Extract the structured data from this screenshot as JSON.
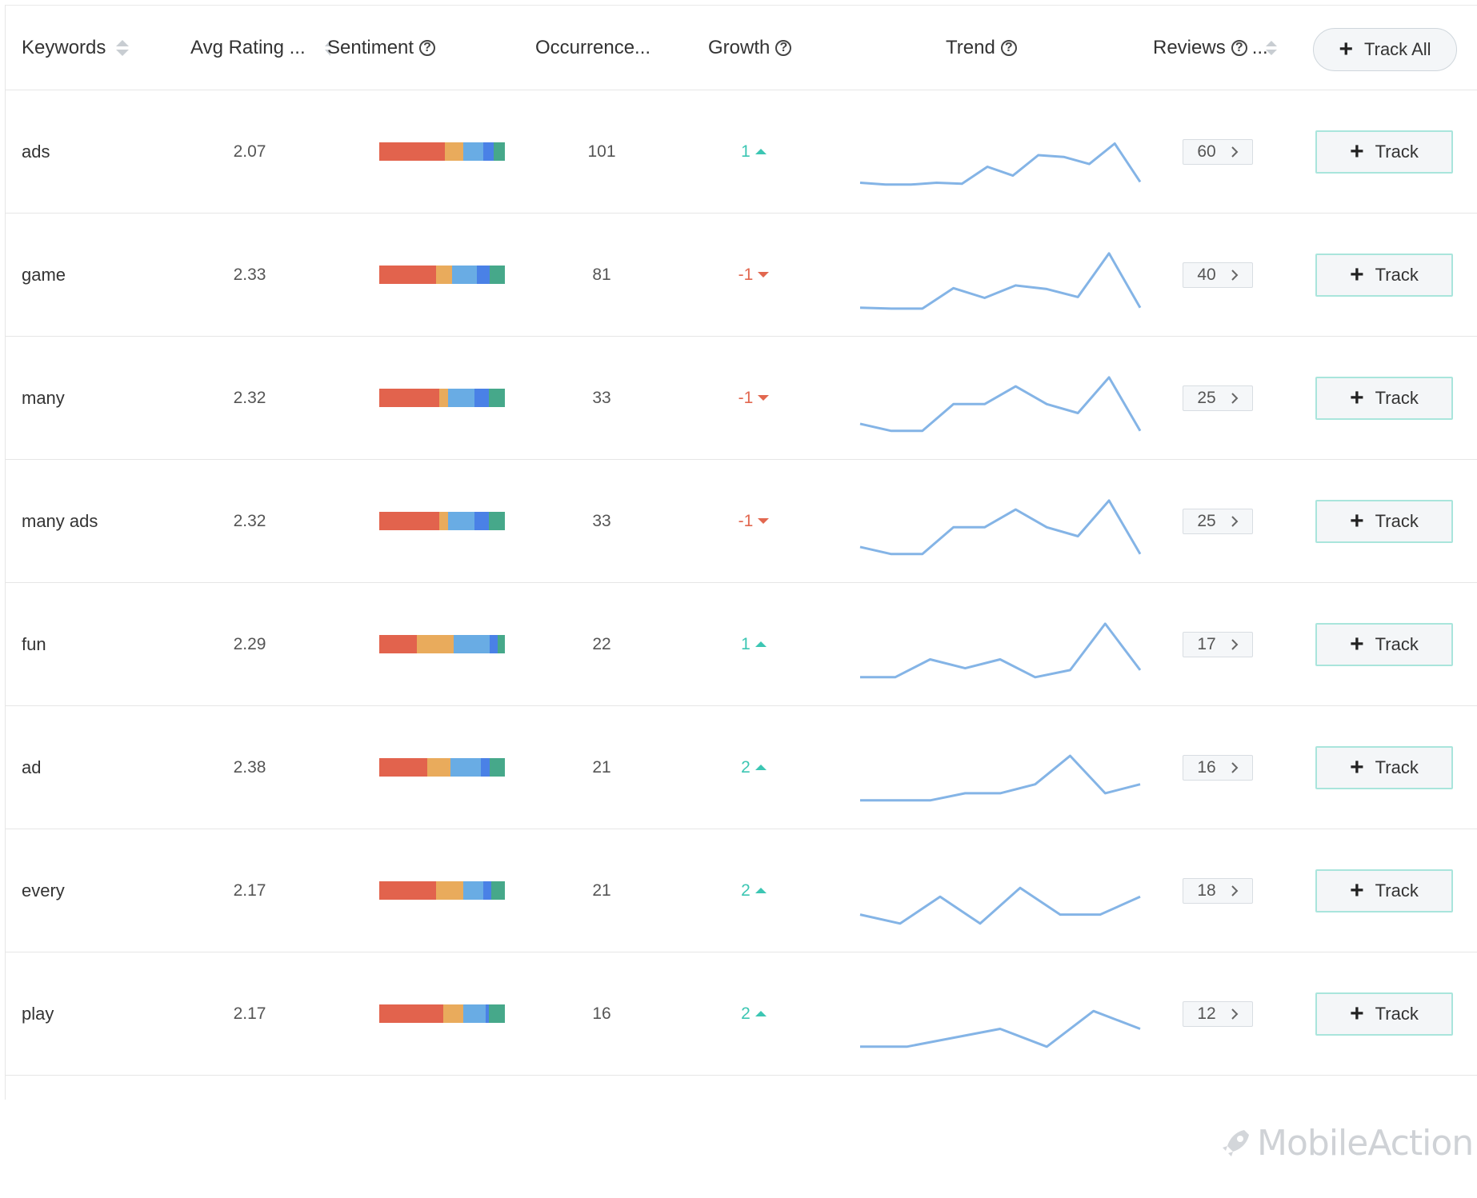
{
  "header": {
    "keywords": "Keywords",
    "avg_rating": "Avg Rating ...",
    "sentiment": "Sentiment",
    "occurrence": "Occurrence...",
    "growth": "Growth",
    "trend": "Trend",
    "reviews": "Reviews",
    "reviews_more": "...",
    "track_all": "Track All"
  },
  "colors": {
    "sentiment": [
      "#e2634d",
      "#e9ab5c",
      "#69ace4",
      "#4a81e6",
      "#46a88a"
    ],
    "growth_up": "#3cc6b3",
    "growth_down": "#e2674f",
    "trend_line": "#84b4e6"
  },
  "rows": [
    {
      "keyword": "ads",
      "rating": "2.07",
      "sentiment": [
        0.52,
        0.15,
        0.16,
        0.08,
        0.09
      ],
      "occurrence": "101",
      "growth": "1",
      "growth_dir": "up",
      "trend": [
        4,
        2,
        2,
        4,
        3,
        22,
        12,
        35,
        33,
        25,
        48,
        5
      ],
      "reviews": "60",
      "track": "Track"
    },
    {
      "keyword": "game",
      "rating": "2.33",
      "sentiment": [
        0.45,
        0.13,
        0.2,
        0.1,
        0.12
      ],
      "occurrence": "81",
      "growth": "-1",
      "growth_dir": "down",
      "trend": [
        2,
        1,
        1,
        24,
        13,
        27,
        23,
        14,
        63,
        2
      ],
      "reviews": "40",
      "track": "Track"
    },
    {
      "keyword": "many",
      "rating": "2.32",
      "sentiment": [
        0.48,
        0.07,
        0.21,
        0.11,
        0.13
      ],
      "occurrence": "33",
      "growth": "-1",
      "growth_dir": "down",
      "trend": [
        10,
        2,
        2,
        32,
        32,
        52,
        32,
        22,
        62,
        2
      ],
      "reviews": "25",
      "track": "Track"
    },
    {
      "keyword": "many ads",
      "rating": "2.32",
      "sentiment": [
        0.48,
        0.07,
        0.21,
        0.11,
        0.13
      ],
      "occurrence": "33",
      "growth": "-1",
      "growth_dir": "down",
      "trend": [
        10,
        2,
        2,
        32,
        32,
        52,
        32,
        22,
        62,
        2
      ],
      "reviews": "25",
      "track": "Track"
    },
    {
      "keyword": "fun",
      "rating": "2.29",
      "sentiment": [
        0.3,
        0.29,
        0.29,
        0.06,
        0.06
      ],
      "occurrence": "22",
      "growth": "1",
      "growth_dir": "up",
      "trend": [
        2,
        2,
        22,
        12,
        22,
        2,
        10,
        62,
        10
      ],
      "reviews": "17",
      "track": "Track"
    },
    {
      "keyword": "ad",
      "rating": "2.38",
      "sentiment": [
        0.38,
        0.19,
        0.24,
        0.07,
        0.12
      ],
      "occurrence": "21",
      "growth": "2",
      "growth_dir": "up",
      "trend": [
        2,
        2,
        2,
        10,
        10,
        20,
        52,
        10,
        20
      ],
      "reviews": "16",
      "track": "Track"
    },
    {
      "keyword": "every",
      "rating": "2.17",
      "sentiment": [
        0.45,
        0.22,
        0.16,
        0.06,
        0.11
      ],
      "occurrence": "21",
      "growth": "2",
      "growth_dir": "up",
      "trend": [
        12,
        2,
        32,
        2,
        42,
        12,
        12,
        32
      ],
      "reviews": "18",
      "track": "Track"
    },
    {
      "keyword": "play",
      "rating": "2.17",
      "sentiment": [
        0.51,
        0.16,
        0.18,
        0.02,
        0.13
      ],
      "occurrence": "16",
      "growth": "2",
      "growth_dir": "up",
      "trend": [
        2,
        2,
        12,
        22,
        2,
        42,
        22
      ],
      "reviews": "12",
      "track": "Track"
    }
  ],
  "brand": {
    "logo_text": "MobileAction"
  }
}
